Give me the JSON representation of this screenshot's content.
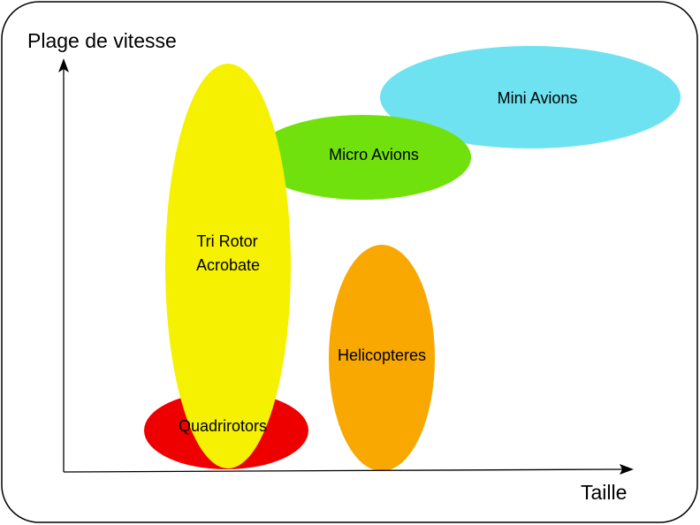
{
  "diagram": {
    "y_axis_label": "Plage de vitesse",
    "x_axis_label": "Taille",
    "regions": [
      {
        "id": "mini-avions",
        "label_lines": [
          "Mini Avions"
        ],
        "color": "#6ee2f1"
      },
      {
        "id": "micro-avions",
        "label_lines": [
          "Micro Avions"
        ],
        "color": "#71e10e"
      },
      {
        "id": "quadrirotors",
        "label_lines": [
          "Quadrirotors"
        ],
        "color": "#ee0000"
      },
      {
        "id": "tri-rotor-acrobate",
        "label_lines": [
          "Tri Rotor",
          "Acrobate"
        ],
        "color": "#f5f100"
      },
      {
        "id": "helicopteres",
        "label_lines": [
          "Helicopteres"
        ],
        "color": "#f8a800"
      }
    ]
  }
}
